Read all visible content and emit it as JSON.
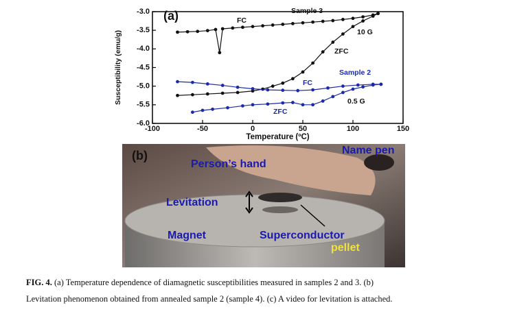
{
  "chart_data": {
    "type": "line",
    "panel_label": "(a)",
    "x_label": "Temperature (ºC)",
    "y_label": "Susceptibility (emu/g)",
    "xlim": [
      -100,
      150
    ],
    "xticks": [
      -100,
      -50,
      0,
      50,
      100,
      150
    ],
    "ylim": [
      -6,
      -3
    ],
    "yticks": [
      {
        "value": -6,
        "label": "-6.0"
      },
      {
        "value": -5.5,
        "label": "-5.5"
      },
      {
        "value": -5,
        "label": "-5.0"
      },
      {
        "value": -4.5,
        "label": "-4.5"
      },
      {
        "value": -4,
        "label": "-4.0"
      },
      {
        "value": -3.5,
        "label": "-3.5"
      },
      {
        "value": -3,
        "label": "-3.0"
      }
    ],
    "annotations": [
      "Sample 3",
      "FC",
      "10 G",
      "ZFC",
      "Sample 2",
      "FC",
      "0.5 G",
      "ZFC"
    ],
    "series": [
      {
        "color": "#111111",
        "x": [
          -75,
          -65,
          -55,
          -45,
          -37,
          -33,
          -30,
          -20,
          -10,
          0,
          10,
          20,
          30,
          40,
          50,
          60,
          70,
          80,
          90,
          100,
          110,
          120,
          125
        ],
        "values": [
          -3.55,
          -3.54,
          -3.53,
          -3.51,
          -3.48,
          -4.1,
          -3.46,
          -3.44,
          -3.42,
          -3.4,
          -3.38,
          -3.36,
          -3.34,
          -3.32,
          -3.3,
          -3.28,
          -3.26,
          -3.24,
          -3.21,
          -3.18,
          -3.14,
          -3.09,
          -3.05
        ]
      },
      {
        "color": "#111111",
        "x": [
          -75,
          -60,
          -45,
          -30,
          -15,
          0,
          10,
          20,
          30,
          40,
          50,
          60,
          70,
          80,
          90,
          100,
          110,
          120,
          125
        ],
        "values": [
          -5.25,
          -5.23,
          -5.21,
          -5.19,
          -5.17,
          -5.13,
          -5.08,
          -5.0,
          -4.92,
          -4.8,
          -4.62,
          -4.38,
          -4.08,
          -3.82,
          -3.6,
          -3.4,
          -3.25,
          -3.12,
          -3.05
        ]
      },
      {
        "color": "#1a2aa8",
        "x": [
          -75,
          -60,
          -45,
          -30,
          -15,
          0,
          15,
          30,
          45,
          60,
          75,
          90,
          105,
          120,
          128
        ],
        "values": [
          -4.88,
          -4.9,
          -4.94,
          -4.98,
          -5.03,
          -5.07,
          -5.1,
          -5.11,
          -5.12,
          -5.1,
          -5.05,
          -5.0,
          -4.97,
          -4.95,
          -4.95
        ]
      },
      {
        "color": "#1a2aa8",
        "x": [
          -60,
          -50,
          -40,
          -25,
          -10,
          0,
          15,
          30,
          40,
          50,
          60,
          70,
          80,
          90,
          100,
          110,
          120,
          128
        ],
        "values": [
          -5.7,
          -5.65,
          -5.62,
          -5.58,
          -5.53,
          -5.5,
          -5.48,
          -5.45,
          -5.44,
          -5.5,
          -5.5,
          -5.4,
          -5.28,
          -5.17,
          -5.08,
          -5.02,
          -4.97,
          -4.95
        ]
      }
    ]
  },
  "photo": {
    "panel_label": "(b)",
    "labels": [
      "Name pen",
      "Person’s hand",
      "Levitation",
      "Magnet",
      "Superconductor",
      "pellet"
    ]
  },
  "caption": {
    "label": "FIG. 4.",
    "lines": [
      "(a) Temperature dependence of diamagnetic susceptibilities measured in samples 2 and 3. (b)",
      "Levitation phenomenon obtained from annealed sample 2 (sample 4). (c) A video for levitation is attached."
    ]
  }
}
